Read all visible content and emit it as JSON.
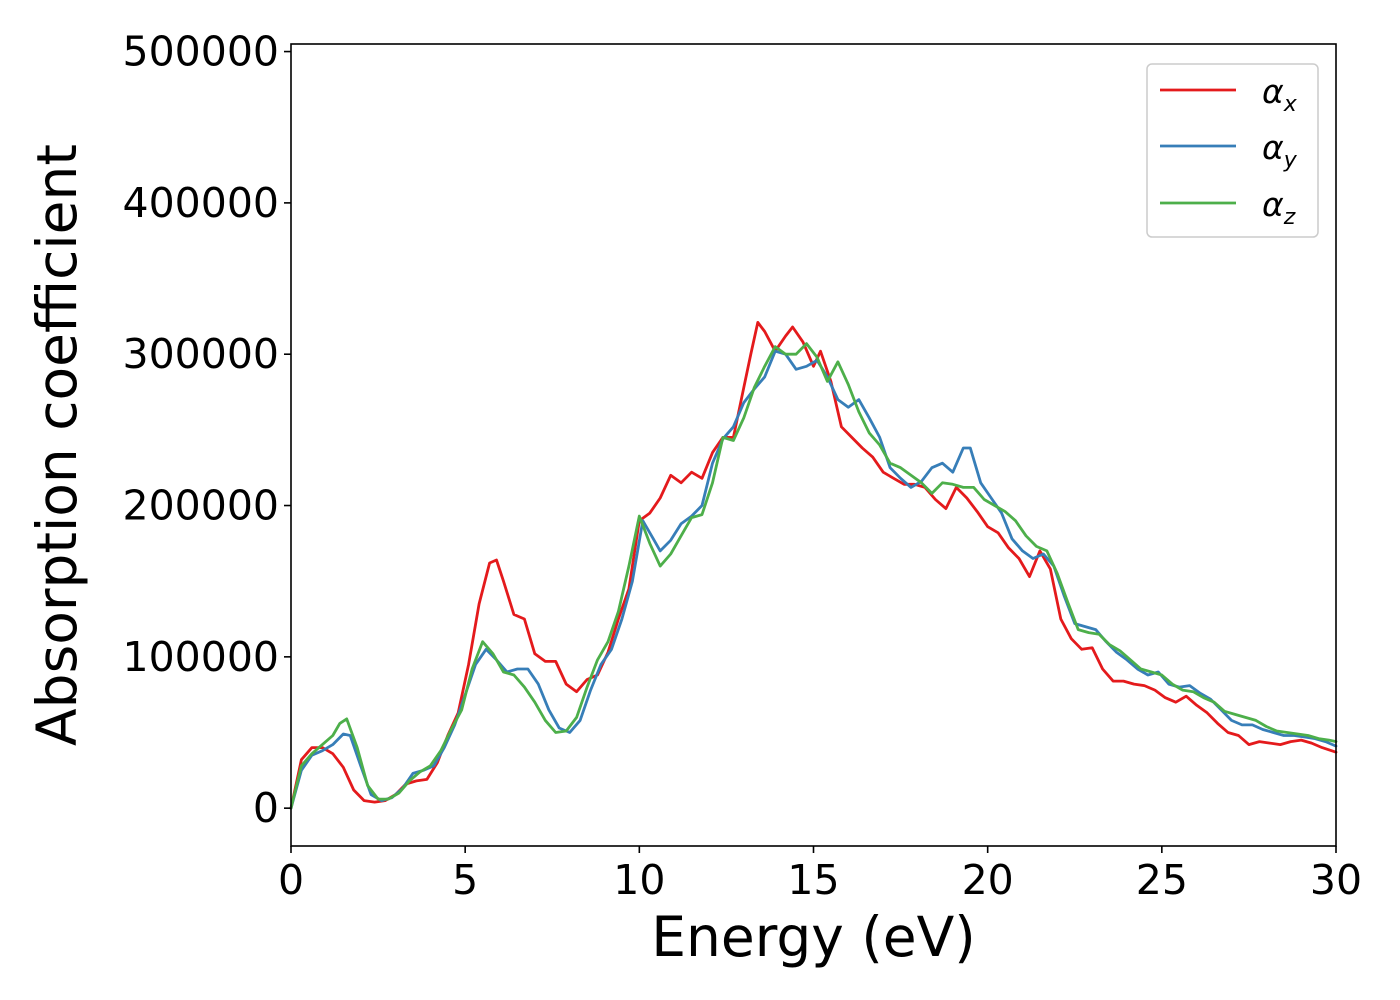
{
  "chart_data": {
    "type": "line",
    "xlabel": "Energy (eV)",
    "ylabel": "Absorption coefficient",
    "xlim": [
      0,
      30
    ],
    "ylim": [
      -25000,
      505000
    ],
    "xticks": [
      0,
      5,
      10,
      15,
      20,
      25,
      30
    ],
    "xtick_labels": [
      "0",
      "5",
      "10",
      "15",
      "20",
      "25",
      "30"
    ],
    "yticks": [
      0,
      100000,
      200000,
      300000,
      400000,
      500000
    ],
    "ytick_labels": [
      "0",
      "100000",
      "200000",
      "300000",
      "400000",
      "500000"
    ],
    "grid": false,
    "legend_position": "top-right",
    "series": [
      {
        "name": "αx",
        "legend_main": "α",
        "legend_sub": "x",
        "color": "#e41a1c",
        "x": [
          0,
          0.3,
          0.6,
          0.9,
          1.2,
          1.5,
          1.8,
          2.1,
          2.4,
          2.7,
          3.0,
          3.3,
          3.6,
          3.9,
          4.2,
          4.5,
          4.8,
          5.1,
          5.4,
          5.7,
          5.9,
          6.1,
          6.4,
          6.7,
          7.0,
          7.3,
          7.6,
          7.9,
          8.2,
          8.5,
          8.8,
          9.1,
          9.4,
          9.7,
          10.0,
          10.3,
          10.6,
          10.9,
          11.2,
          11.5,
          11.8,
          12.1,
          12.4,
          12.7,
          13.0,
          13.2,
          13.4,
          13.6,
          13.9,
          14.2,
          14.4,
          14.7,
          15.0,
          15.2,
          15.5,
          15.8,
          16.1,
          16.4,
          16.7,
          17.0,
          17.3,
          17.6,
          17.9,
          18.2,
          18.5,
          18.8,
          19.1,
          19.4,
          19.7,
          20.0,
          20.3,
          20.6,
          20.9,
          21.2,
          21.5,
          21.8,
          22.1,
          22.4,
          22.7,
          23.0,
          23.3,
          23.6,
          23.9,
          24.2,
          24.5,
          24.8,
          25.1,
          25.4,
          25.7,
          26.0,
          26.3,
          26.6,
          26.9,
          27.2,
          27.5,
          27.8,
          28.1,
          28.4,
          28.7,
          29.0,
          29.3,
          29.6,
          30.0
        ],
        "y": [
          0,
          32000,
          40000,
          40000,
          36000,
          27000,
          12000,
          5000,
          4000,
          5000,
          9000,
          16000,
          18000,
          19000,
          30000,
          48000,
          63000,
          95000,
          135000,
          162000,
          164000,
          150000,
          128000,
          125000,
          102000,
          97000,
          97000,
          82000,
          77000,
          85000,
          88000,
          103000,
          125000,
          145000,
          190000,
          195000,
          205000,
          220000,
          215000,
          222000,
          218000,
          235000,
          245000,
          245000,
          278000,
          300000,
          321000,
          315000,
          302000,
          312000,
          318000,
          308000,
          292000,
          302000,
          282000,
          252000,
          245000,
          238000,
          232000,
          222000,
          218000,
          214000,
          214000,
          212000,
          204000,
          198000,
          212000,
          205000,
          196000,
          186000,
          182000,
          172000,
          165000,
          153000,
          170000,
          158000,
          125000,
          112000,
          105000,
          106000,
          92000,
          84000,
          84000,
          82000,
          81000,
          78000,
          73000,
          70000,
          74000,
          68000,
          63000,
          56000,
          50000,
          48000,
          42000,
          44000,
          43000,
          42000,
          44000,
          45000,
          43000,
          40000,
          37000
        ]
      },
      {
        "name": "αy",
        "legend_main": "α",
        "legend_sub": "y",
        "color": "#377eb8",
        "x": [
          0,
          0.3,
          0.6,
          0.9,
          1.2,
          1.5,
          1.7,
          2.0,
          2.3,
          2.6,
          2.9,
          3.2,
          3.5,
          3.8,
          4.1,
          4.4,
          4.7,
          5.0,
          5.3,
          5.6,
          5.9,
          6.2,
          6.5,
          6.8,
          7.1,
          7.4,
          7.7,
          8.0,
          8.3,
          8.6,
          8.9,
          9.2,
          9.5,
          9.8,
          10.1,
          10.4,
          10.6,
          10.9,
          11.2,
          11.5,
          11.8,
          12.1,
          12.4,
          12.7,
          13.0,
          13.3,
          13.6,
          13.9,
          14.2,
          14.5,
          14.8,
          15.1,
          15.4,
          15.7,
          16.0,
          16.3,
          16.6,
          16.9,
          17.2,
          17.5,
          17.8,
          18.1,
          18.4,
          18.7,
          19.0,
          19.3,
          19.5,
          19.8,
          20.1,
          20.4,
          20.7,
          21.0,
          21.3,
          21.6,
          21.9,
          22.2,
          22.5,
          22.8,
          23.1,
          23.4,
          23.7,
          24.0,
          24.3,
          24.6,
          24.9,
          25.2,
          25.5,
          25.8,
          26.1,
          26.4,
          26.7,
          27.0,
          27.3,
          27.6,
          27.9,
          28.2,
          28.5,
          28.8,
          29.1,
          29.4,
          29.7,
          30.0
        ],
        "y": [
          0,
          25000,
          35000,
          38000,
          42000,
          49000,
          48000,
          28000,
          9000,
          5000,
          7000,
          13000,
          23000,
          25000,
          28000,
          40000,
          55000,
          75000,
          95000,
          105000,
          98000,
          90000,
          92000,
          92000,
          82000,
          65000,
          53000,
          50000,
          58000,
          78000,
          95000,
          105000,
          125000,
          150000,
          190000,
          178000,
          170000,
          177000,
          188000,
          193000,
          200000,
          228000,
          244000,
          252000,
          268000,
          277000,
          285000,
          302000,
          300000,
          290000,
          292000,
          296000,
          285000,
          270000,
          265000,
          270000,
          258000,
          245000,
          225000,
          218000,
          212000,
          216000,
          225000,
          228000,
          222000,
          238000,
          238000,
          215000,
          205000,
          195000,
          178000,
          170000,
          165000,
          168000,
          160000,
          140000,
          122000,
          120000,
          118000,
          110000,
          103000,
          98000,
          92000,
          88000,
          90000,
          82000,
          80000,
          81000,
          76000,
          72000,
          65000,
          58000,
          55000,
          55000,
          52000,
          50000,
          48000,
          48000,
          47000,
          46000,
          44000,
          41000
        ]
      },
      {
        "name": "αz",
        "legend_main": "α",
        "legend_sub": "z",
        "color": "#4daf4a",
        "x": [
          0,
          0.3,
          0.6,
          0.9,
          1.2,
          1.4,
          1.6,
          1.9,
          2.2,
          2.5,
          2.8,
          3.1,
          3.4,
          3.7,
          4.0,
          4.3,
          4.6,
          4.9,
          5.2,
          5.5,
          5.8,
          6.1,
          6.4,
          6.7,
          7.0,
          7.3,
          7.6,
          7.9,
          8.2,
          8.5,
          8.8,
          9.1,
          9.4,
          9.7,
          10.0,
          10.3,
          10.6,
          10.9,
          11.2,
          11.5,
          11.8,
          12.1,
          12.4,
          12.7,
          13.0,
          13.3,
          13.6,
          13.9,
          14.2,
          14.5,
          14.8,
          15.1,
          15.4,
          15.7,
          16.0,
          16.3,
          16.6,
          16.9,
          17.2,
          17.5,
          17.8,
          18.1,
          18.4,
          18.7,
          19.0,
          19.3,
          19.6,
          19.9,
          20.2,
          20.5,
          20.8,
          21.1,
          21.4,
          21.7,
          22.0,
          22.3,
          22.6,
          22.9,
          23.2,
          23.5,
          23.8,
          24.1,
          24.4,
          24.7,
          25.0,
          25.3,
          25.6,
          25.9,
          26.2,
          26.5,
          26.8,
          27.1,
          27.4,
          27.7,
          28.0,
          28.3,
          28.6,
          28.9,
          29.2,
          29.5,
          29.8,
          30.0
        ],
        "y": [
          0,
          28000,
          36000,
          42000,
          48000,
          56000,
          59000,
          40000,
          15000,
          6000,
          6000,
          10000,
          18000,
          24000,
          28000,
          38000,
          52000,
          65000,
          92000,
          110000,
          102000,
          90000,
          88000,
          80000,
          70000,
          58000,
          50000,
          51000,
          60000,
          80000,
          98000,
          110000,
          130000,
          160000,
          193000,
          175000,
          160000,
          168000,
          180000,
          192000,
          194000,
          215000,
          245000,
          243000,
          258000,
          278000,
          292000,
          305000,
          300000,
          300000,
          307000,
          298000,
          282000,
          295000,
          280000,
          262000,
          248000,
          240000,
          228000,
          225000,
          220000,
          215000,
          208000,
          215000,
          214000,
          212000,
          212000,
          204000,
          200000,
          196000,
          190000,
          180000,
          173000,
          170000,
          155000,
          136000,
          118000,
          116000,
          115000,
          108000,
          104000,
          98000,
          92000,
          90000,
          88000,
          82000,
          78000,
          77000,
          73000,
          70000,
          64000,
          62000,
          60000,
          58000,
          54000,
          51000,
          50000,
          49000,
          48000,
          46000,
          45000,
          44000
        ]
      }
    ]
  }
}
